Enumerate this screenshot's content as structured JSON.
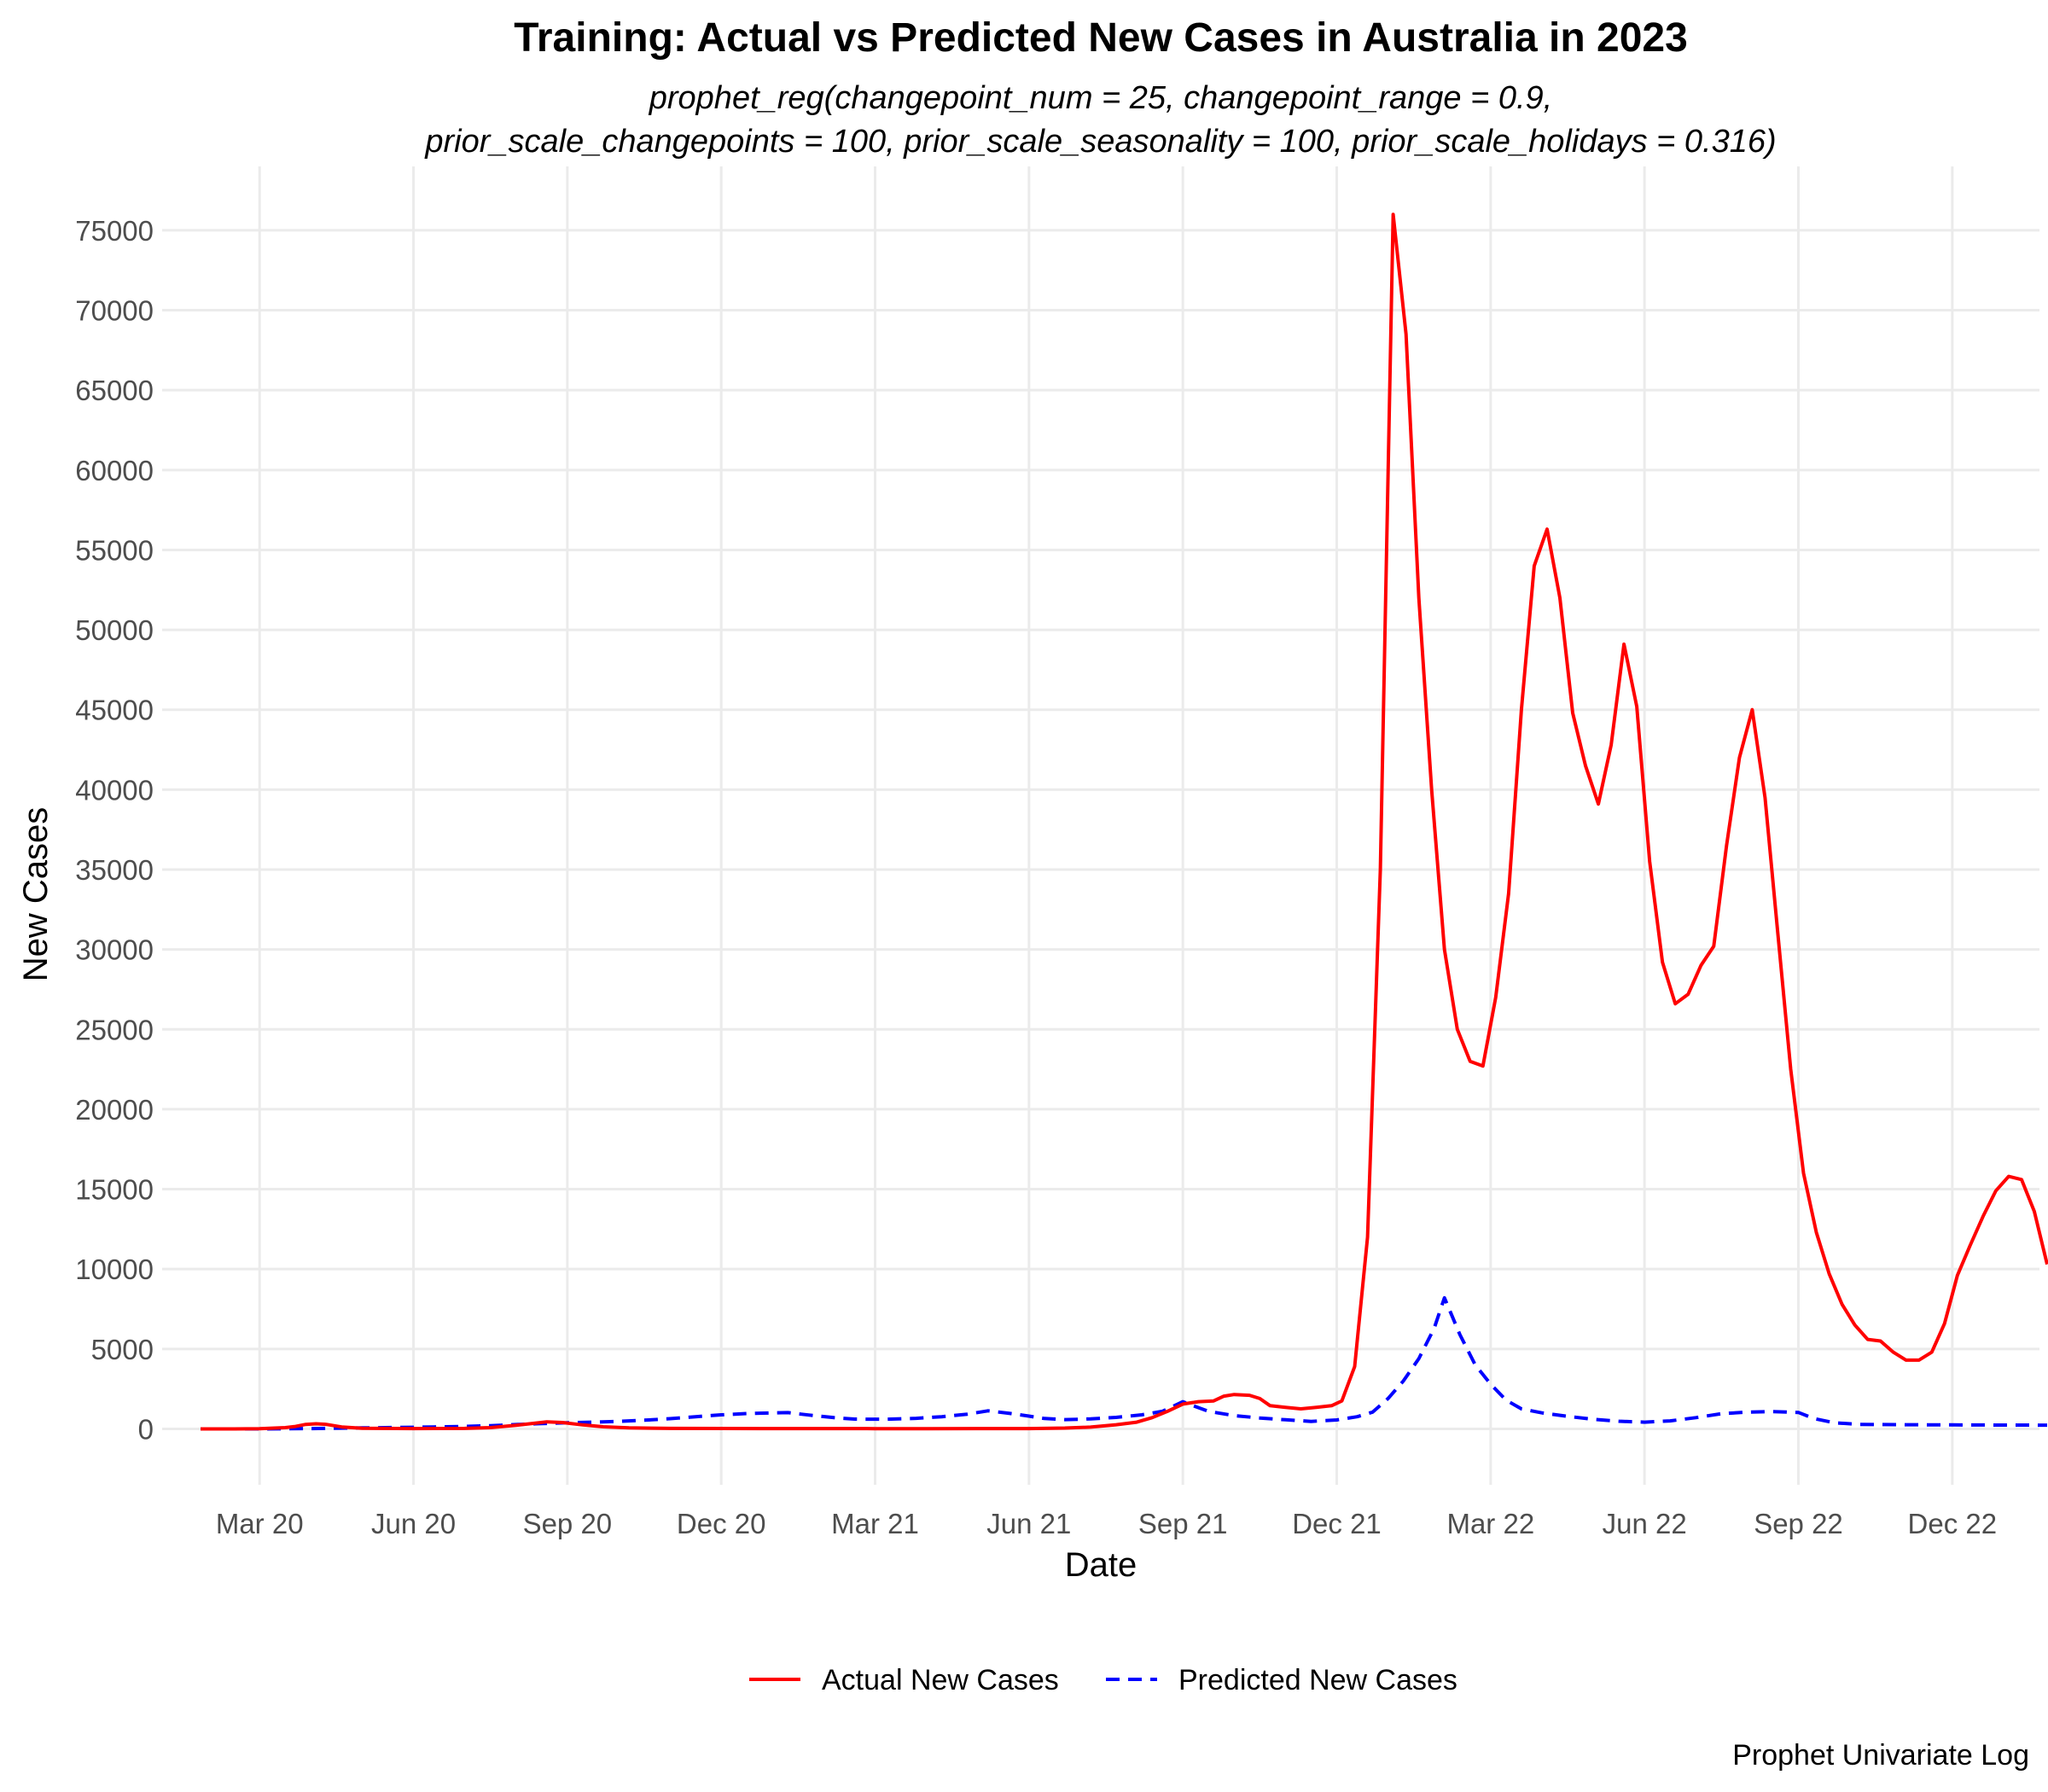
{
  "chart_data": {
    "type": "line",
    "title": "Training: Actual vs Predicted New Cases in Australia in 2023",
    "subtitle_lines": [
      "prophet_reg(changepoint_num = 25, changepoint_range = 0.9,",
      "prior_scale_changepoints = 100, prior_scale_seasonality = 100, prior_scale_holidays = 0.316)"
    ],
    "xlabel": "Date",
    "ylabel": "New Cases",
    "caption": "Prophet Univariate Log",
    "x_unit": "months since 2020-01-01",
    "xlim": [
      0.1,
      36.7
    ],
    "ylim": [
      -3500,
      79000
    ],
    "grid": true,
    "legend_position": "bottom",
    "x_ticks": [
      {
        "at": 2,
        "label": "Mar 20"
      },
      {
        "at": 5,
        "label": "Jun 20"
      },
      {
        "at": 8,
        "label": "Sep 20"
      },
      {
        "at": 11,
        "label": "Dec 20"
      },
      {
        "at": 14,
        "label": "Mar 21"
      },
      {
        "at": 17,
        "label": "Jun 21"
      },
      {
        "at": 20,
        "label": "Sep 21"
      },
      {
        "at": 23,
        "label": "Dec 21"
      },
      {
        "at": 26,
        "label": "Mar 22"
      },
      {
        "at": 29,
        "label": "Jun 22"
      },
      {
        "at": 32,
        "label": "Sep 22"
      },
      {
        "at": 35,
        "label": "Dec 22"
      }
    ],
    "y_ticks": [
      0,
      5000,
      10000,
      15000,
      20000,
      25000,
      30000,
      35000,
      40000,
      45000,
      50000,
      55000,
      60000,
      65000,
      70000,
      75000
    ],
    "series": [
      {
        "name": "Actual New Cases",
        "color": "#ff0000",
        "dash": "solid",
        "points": [
          [
            0.85,
            0
          ],
          [
            1.5,
            0
          ],
          [
            2.0,
            10
          ],
          [
            2.5,
            80
          ],
          [
            2.7,
            150
          ],
          [
            2.9,
            280
          ],
          [
            3.1,
            320
          ],
          [
            3.3,
            280
          ],
          [
            3.6,
            120
          ],
          [
            4.0,
            40
          ],
          [
            5.0,
            20
          ],
          [
            6.0,
            30
          ],
          [
            6.5,
            80
          ],
          [
            7.0,
            220
          ],
          [
            7.3,
            330
          ],
          [
            7.6,
            440
          ],
          [
            7.9,
            400
          ],
          [
            8.3,
            250
          ],
          [
            8.7,
            130
          ],
          [
            9.2,
            60
          ],
          [
            10,
            30
          ],
          [
            11,
            25
          ],
          [
            12,
            20
          ],
          [
            13,
            20
          ],
          [
            14,
            15
          ],
          [
            15,
            15
          ],
          [
            16,
            20
          ],
          [
            17,
            20
          ],
          [
            17.7,
            50
          ],
          [
            18.2,
            110
          ],
          [
            18.7,
            260
          ],
          [
            19.1,
            420
          ],
          [
            19.4,
            700
          ],
          [
            19.7,
            1100
          ],
          [
            20.0,
            1550
          ],
          [
            20.3,
            1700
          ],
          [
            20.6,
            1750
          ],
          [
            20.8,
            2050
          ],
          [
            21.0,
            2150
          ],
          [
            21.3,
            2100
          ],
          [
            21.5,
            1900
          ],
          [
            21.7,
            1450
          ],
          [
            22.0,
            1350
          ],
          [
            22.3,
            1250
          ],
          [
            22.6,
            1350
          ],
          [
            22.9,
            1450
          ],
          [
            23.1,
            1750
          ],
          [
            23.35,
            3900
          ],
          [
            23.6,
            12000
          ],
          [
            23.85,
            35000
          ],
          [
            24.1,
            76000
          ],
          [
            24.35,
            68500
          ],
          [
            24.6,
            52000
          ],
          [
            24.85,
            40000
          ],
          [
            25.1,
            30000
          ],
          [
            25.35,
            25000
          ],
          [
            25.6,
            23000
          ],
          [
            25.85,
            22700
          ],
          [
            26.1,
            27000
          ],
          [
            26.35,
            33500
          ],
          [
            26.6,
            45000
          ],
          [
            26.85,
            54000
          ],
          [
            27.1,
            56300
          ],
          [
            27.35,
            52000
          ],
          [
            27.6,
            44800
          ],
          [
            27.85,
            41500
          ],
          [
            28.1,
            39100
          ],
          [
            28.35,
            42800
          ],
          [
            28.6,
            49100
          ],
          [
            28.85,
            45200
          ],
          [
            29.1,
            35500
          ],
          [
            29.35,
            29200
          ],
          [
            29.6,
            26600
          ],
          [
            29.85,
            27200
          ],
          [
            30.1,
            29000
          ],
          [
            30.35,
            30200
          ],
          [
            30.6,
            36500
          ],
          [
            30.85,
            42000
          ],
          [
            31.1,
            45000
          ],
          [
            31.35,
            39500
          ],
          [
            31.6,
            31000
          ],
          [
            31.85,
            22500
          ],
          [
            32.1,
            16000
          ],
          [
            32.35,
            12300
          ],
          [
            32.6,
            9700
          ],
          [
            32.85,
            7800
          ],
          [
            33.1,
            6500
          ],
          [
            33.35,
            5600
          ],
          [
            33.6,
            5500
          ],
          [
            33.85,
            4800
          ],
          [
            34.1,
            4300
          ],
          [
            34.35,
            4300
          ],
          [
            34.6,
            4800
          ],
          [
            34.85,
            6600
          ],
          [
            35.1,
            9600
          ],
          [
            35.35,
            11500
          ],
          [
            35.6,
            13300
          ],
          [
            35.85,
            14900
          ],
          [
            36.1,
            15800
          ],
          [
            36.35,
            15600
          ],
          [
            36.6,
            13600
          ],
          [
            36.85,
            10300
          ]
        ]
      },
      {
        "name": "Predicted New Cases",
        "color": "#0000ff",
        "dash": "dashed",
        "points": [
          [
            0.85,
            0
          ],
          [
            2.0,
            0
          ],
          [
            3.0,
            20
          ],
          [
            4.0,
            60
          ],
          [
            5.0,
            100
          ],
          [
            6.0,
            150
          ],
          [
            6.5,
            200
          ],
          [
            7.0,
            270
          ],
          [
            7.5,
            330
          ],
          [
            8.0,
            380
          ],
          [
            8.5,
            420
          ],
          [
            9.0,
            470
          ],
          [
            9.5,
            540
          ],
          [
            10.0,
            640
          ],
          [
            10.5,
            760
          ],
          [
            11.0,
            880
          ],
          [
            11.5,
            960
          ],
          [
            12.0,
            1000
          ],
          [
            12.3,
            1020
          ],
          [
            12.7,
            870
          ],
          [
            13.2,
            700
          ],
          [
            13.6,
            610
          ],
          [
            14.2,
            600
          ],
          [
            14.8,
            660
          ],
          [
            15.3,
            760
          ],
          [
            15.8,
            920
          ],
          [
            16.2,
            1130
          ],
          [
            16.6,
            980
          ],
          [
            17.0,
            800
          ],
          [
            17.3,
            650
          ],
          [
            17.7,
            580
          ],
          [
            18.2,
            620
          ],
          [
            18.7,
            720
          ],
          [
            19.2,
            880
          ],
          [
            19.6,
            1100
          ],
          [
            19.8,
            1400
          ],
          [
            20.0,
            1700
          ],
          [
            20.2,
            1450
          ],
          [
            20.5,
            1100
          ],
          [
            21.0,
            830
          ],
          [
            21.5,
            680
          ],
          [
            22.0,
            570
          ],
          [
            22.5,
            470
          ],
          [
            23.0,
            560
          ],
          [
            23.4,
            760
          ],
          [
            23.7,
            1050
          ],
          [
            24.0,
            1900
          ],
          [
            24.3,
            3000
          ],
          [
            24.6,
            4400
          ],
          [
            24.9,
            6300
          ],
          [
            25.1,
            8200
          ],
          [
            25.4,
            5900
          ],
          [
            25.7,
            4000
          ],
          [
            26.0,
            2800
          ],
          [
            26.3,
            1800
          ],
          [
            26.6,
            1250
          ],
          [
            27.0,
            1000
          ],
          [
            27.5,
            780
          ],
          [
            28.0,
            600
          ],
          [
            28.5,
            480
          ],
          [
            29.0,
            420
          ],
          [
            29.5,
            500
          ],
          [
            30.0,
            700
          ],
          [
            30.5,
            950
          ],
          [
            31.0,
            1050
          ],
          [
            31.5,
            1080
          ],
          [
            32.0,
            1030
          ],
          [
            32.3,
            650
          ],
          [
            32.7,
            380
          ],
          [
            33.2,
            280
          ],
          [
            34.0,
            260
          ],
          [
            35.0,
            250
          ],
          [
            36.0,
            240
          ],
          [
            36.85,
            230
          ]
        ]
      }
    ]
  }
}
